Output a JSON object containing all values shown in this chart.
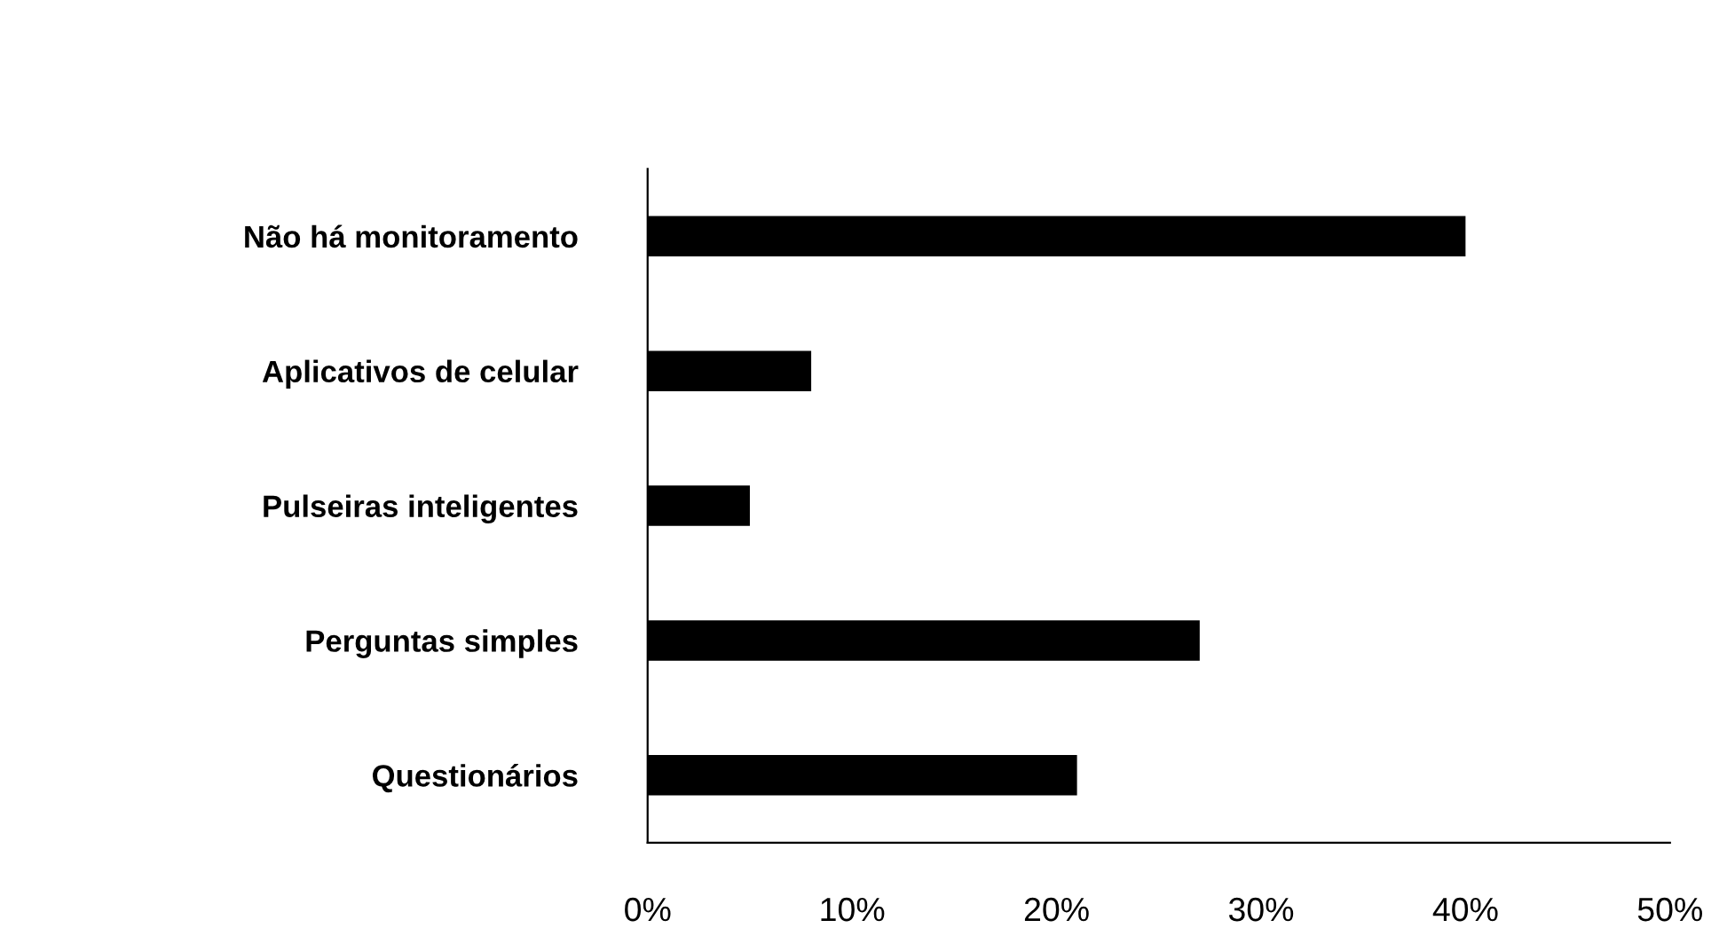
{
  "chart_data": {
    "type": "bar",
    "orientation": "horizontal",
    "categories": [
      "Não há monitoramento",
      "Aplicativos de celular",
      "Pulseiras inteligentes",
      "Perguntas simples",
      "Questionários"
    ],
    "values": [
      40,
      8,
      5,
      27,
      21
    ],
    "color": "#000000",
    "xlim": [
      0,
      50
    ],
    "xticks": [
      {
        "value": 0,
        "label": "0%"
      },
      {
        "value": 10,
        "label": "10%"
      },
      {
        "value": 20,
        "label": "20%"
      },
      {
        "value": 30,
        "label": "30%"
      },
      {
        "value": 40,
        "label": "40%"
      },
      {
        "value": 50,
        "label": "50%"
      }
    ],
    "grid": false,
    "legend": false
  }
}
